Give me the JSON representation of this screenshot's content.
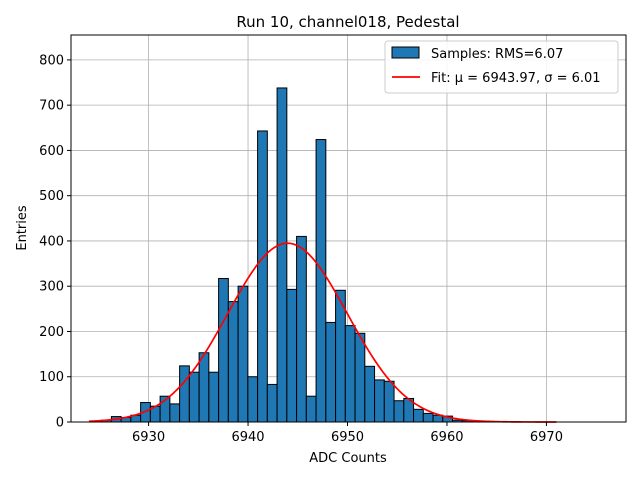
{
  "chart_data": {
    "type": "bar",
    "title": "Run 10, channel018, Pedestal",
    "xlabel": "ADC Counts",
    "ylabel": "Entries",
    "xlim": [
      6922.2,
      6978.0
    ],
    "ylim": [
      0,
      855
    ],
    "grid": true,
    "legend_position": "top-right",
    "x_ticks": [
      6930,
      6940,
      6950,
      6960,
      6970
    ],
    "y_ticks": [
      0,
      100,
      200,
      300,
      400,
      500,
      600,
      700,
      800
    ],
    "bin_width": 0.98,
    "bin_start": 6924.3,
    "series": [
      {
        "name": "Samples: RMS=6.07",
        "kind": "histogram",
        "color": "#1f77b4",
        "edge_color": "#000000",
        "values": [
          2,
          4,
          12,
          10,
          15,
          43,
          35,
          57,
          40,
          124,
          110,
          153,
          110,
          317,
          266,
          300,
          100,
          643,
          83,
          738,
          293,
          410,
          57,
          624,
          220,
          291,
          213,
          196,
          123,
          93,
          90,
          47,
          52,
          28,
          19,
          15,
          13,
          4,
          3,
          1,
          1,
          0,
          0,
          0,
          0,
          0,
          0,
          0,
          0,
          0,
          0,
          0
        ]
      },
      {
        "name": "Fit: μ = 6943.97, σ = 6.01",
        "kind": "gaussian-fit",
        "color": "#ff0000",
        "mu": 6943.97,
        "sigma": 6.01,
        "amplitude": 395,
        "x_range": [
          6924,
          6971
        ]
      }
    ]
  }
}
